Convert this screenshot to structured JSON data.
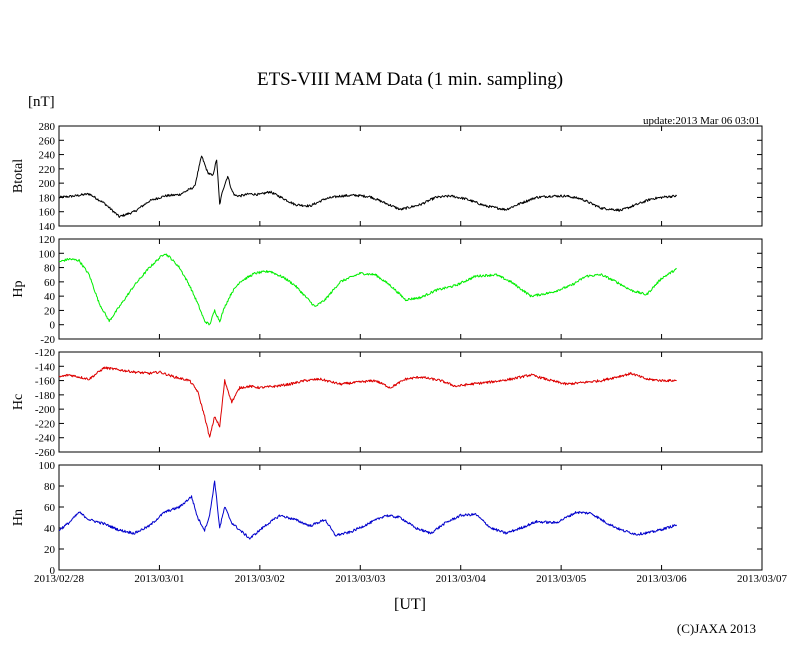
{
  "chart_data": {
    "type": "line",
    "title": "ETS-VIII MAM Data (1 min. sampling)",
    "unit_label": "[nT]",
    "update_label": "update:2013 Mar 06 03:01",
    "xlabel": "[UT]",
    "credit": "(C)JAXA 2013",
    "x_axis": {
      "unit": "days since 2013/02/28 00:00 UT",
      "range": [
        0,
        7
      ],
      "ticks": [
        {
          "value": 0,
          "label": "2013/02/28"
        },
        {
          "value": 1,
          "label": "2013/03/01"
        },
        {
          "value": 2,
          "label": "2013/03/02"
        },
        {
          "value": 3,
          "label": "2013/03/03"
        },
        {
          "value": 4,
          "label": "2013/03/04"
        },
        {
          "value": 5,
          "label": "2013/03/05"
        },
        {
          "value": 6,
          "label": "2013/03/06"
        },
        {
          "value": 7,
          "label": "2013/03/07"
        }
      ]
    },
    "panels": [
      {
        "name": "Btotal",
        "ylabel": "Btotal",
        "color": "#000000",
        "ylim": [
          140,
          280
        ],
        "yticks": [
          140,
          160,
          180,
          200,
          220,
          240,
          260,
          280
        ],
        "x": [
          0,
          0.15,
          0.3,
          0.45,
          0.6,
          0.75,
          0.9,
          1.05,
          1.2,
          1.35,
          1.42,
          1.48,
          1.53,
          1.57,
          1.6,
          1.63,
          1.68,
          1.72,
          1.75,
          1.8,
          1.9,
          2.0,
          2.1,
          2.2,
          2.35,
          2.5,
          2.65,
          2.8,
          2.95,
          3.1,
          3.25,
          3.4,
          3.6,
          3.75,
          3.9,
          4.05,
          4.25,
          4.45,
          4.6,
          4.75,
          4.9,
          5.05,
          5.2,
          5.4,
          5.6,
          5.75,
          5.9,
          6.05,
          6.15
        ],
        "values": [
          180,
          182,
          185,
          172,
          153,
          160,
          175,
          182,
          184,
          195,
          238,
          215,
          210,
          233,
          170,
          190,
          210,
          190,
          183,
          182,
          185,
          184,
          188,
          181,
          170,
          168,
          178,
          182,
          183,
          181,
          172,
          163,
          170,
          180,
          182,
          178,
          168,
          163,
          172,
          180,
          182,
          182,
          178,
          165,
          162,
          170,
          178,
          181,
          182
        ]
      },
      {
        "name": "Hp",
        "ylabel": "Hp",
        "color": "#00ee00",
        "ylim": [
          -20,
          120
        ],
        "yticks": [
          -20,
          0,
          20,
          40,
          60,
          80,
          100,
          120
        ],
        "x": [
          0,
          0.1,
          0.2,
          0.3,
          0.4,
          0.5,
          0.6,
          0.75,
          0.9,
          1.05,
          1.1,
          1.2,
          1.3,
          1.38,
          1.45,
          1.5,
          1.55,
          1.6,
          1.65,
          1.72,
          1.8,
          1.95,
          2.1,
          2.25,
          2.35,
          2.45,
          2.55,
          2.65,
          2.8,
          3.0,
          3.15,
          3.3,
          3.45,
          3.6,
          3.75,
          3.95,
          4.15,
          4.35,
          4.5,
          4.7,
          4.9,
          5.1,
          5.25,
          5.4,
          5.55,
          5.7,
          5.85,
          6.0,
          6.15
        ],
        "values": [
          88,
          92,
          90,
          70,
          30,
          5,
          25,
          55,
          80,
          100,
          95,
          80,
          55,
          30,
          5,
          0,
          20,
          5,
          25,
          45,
          60,
          72,
          75,
          65,
          55,
          40,
          25,
          35,
          60,
          72,
          70,
          55,
          35,
          38,
          48,
          55,
          68,
          70,
          60,
          40,
          45,
          55,
          68,
          70,
          60,
          48,
          42,
          65,
          78
        ]
      },
      {
        "name": "Hc",
        "ylabel": "Hc",
        "color": "#dd0000",
        "ylim": [
          -260,
          -120
        ],
        "yticks": [
          -260,
          -240,
          -220,
          -200,
          -180,
          -160,
          -140,
          -120
        ],
        "x": [
          0,
          0.1,
          0.2,
          0.3,
          0.45,
          0.6,
          0.75,
          0.9,
          1.0,
          1.15,
          1.3,
          1.38,
          1.45,
          1.5,
          1.55,
          1.6,
          1.65,
          1.72,
          1.8,
          1.9,
          2.0,
          2.15,
          2.3,
          2.45,
          2.6,
          2.8,
          3.0,
          3.15,
          3.3,
          3.45,
          3.6,
          3.8,
          3.95,
          4.1,
          4.3,
          4.5,
          4.7,
          4.9,
          5.05,
          5.2,
          5.4,
          5.55,
          5.7,
          5.85,
          6.0,
          6.15
        ],
        "values": [
          -155,
          -152,
          -155,
          -158,
          -142,
          -145,
          -148,
          -150,
          -148,
          -155,
          -160,
          -175,
          -210,
          -240,
          -210,
          -225,
          -160,
          -190,
          -170,
          -168,
          -170,
          -168,
          -165,
          -160,
          -158,
          -165,
          -162,
          -160,
          -170,
          -158,
          -155,
          -160,
          -168,
          -165,
          -162,
          -158,
          -152,
          -160,
          -165,
          -163,
          -160,
          -155,
          -150,
          -158,
          -160,
          -160
        ]
      },
      {
        "name": "Hn",
        "ylabel": "Hn",
        "color": "#0000cc",
        "ylim": [
          0,
          100
        ],
        "yticks": [
          0,
          20,
          40,
          60,
          80,
          100
        ],
        "x": [
          0,
          0.1,
          0.2,
          0.3,
          0.45,
          0.6,
          0.75,
          0.9,
          1.05,
          1.2,
          1.32,
          1.38,
          1.45,
          1.5,
          1.55,
          1.6,
          1.65,
          1.72,
          1.8,
          1.9,
          2.05,
          2.2,
          2.35,
          2.5,
          2.65,
          2.75,
          2.9,
          3.1,
          3.25,
          3.4,
          3.55,
          3.7,
          3.85,
          4.0,
          4.15,
          4.3,
          4.45,
          4.6,
          4.75,
          4.95,
          5.15,
          5.3,
          5.45,
          5.6,
          5.75,
          5.9,
          6.05,
          6.15
        ],
        "values": [
          38,
          45,
          55,
          48,
          44,
          38,
          35,
          42,
          55,
          60,
          70,
          50,
          38,
          52,
          85,
          40,
          60,
          45,
          38,
          30,
          42,
          52,
          48,
          42,
          48,
          33,
          36,
          45,
          52,
          50,
          40,
          35,
          45,
          52,
          53,
          40,
          35,
          40,
          46,
          45,
          55,
          54,
          45,
          38,
          34,
          36,
          40,
          43
        ]
      }
    ]
  }
}
